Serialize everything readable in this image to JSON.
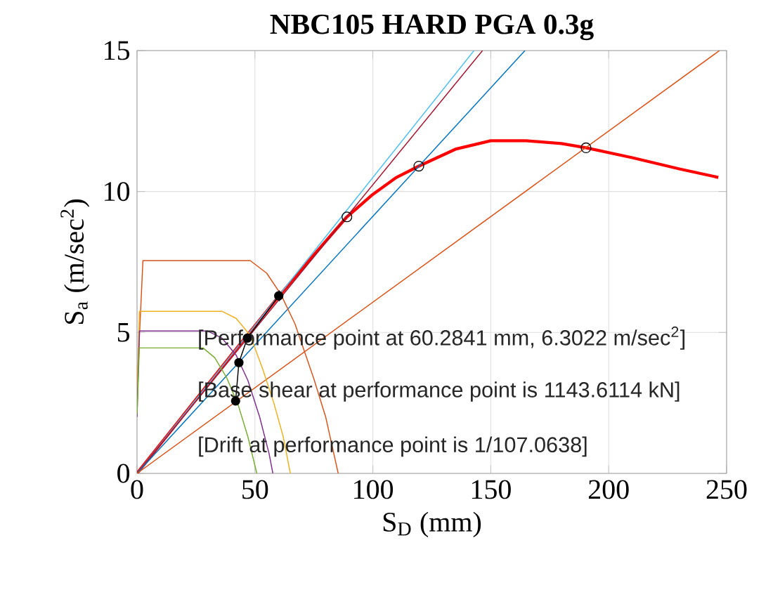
{
  "chart_data": {
    "type": "line",
    "title": "NBC105 HARD PGA 0.3g",
    "xlabel": "S$_{D}$ (mm)",
    "ylabel": "S$_{a}$ (m/sec$^{2}$)",
    "xlim": [
      0,
      250
    ],
    "ylim": [
      0,
      15
    ],
    "xticks": [
      0,
      50,
      100,
      150,
      200,
      250
    ],
    "yticks": [
      0,
      5,
      10,
      15
    ],
    "grid": true,
    "series": [
      {
        "color": "#ff0000",
        "x": [
          0,
          20,
          40,
          60.28,
          75,
          89,
          100,
          110,
          119.5,
          135,
          150,
          165,
          180,
          190.4,
          210,
          230,
          246.5
        ],
        "values": [
          0,
          2.1,
          4.2,
          6.3,
          7.75,
          9.1,
          9.9,
          10.5,
          10.9,
          11.5,
          11.8,
          11.8,
          11.7,
          11.55,
          11.2,
          10.8,
          10.5
        ]
      },
      {
        "color": "#4dbeee",
        "x": [
          0,
          142.9
        ],
        "values": [
          0,
          15
        ]
      },
      {
        "color": "#a2142f",
        "x": [
          0,
          146.5
        ],
        "values": [
          0,
          15
        ]
      },
      {
        "color": "#0072bd",
        "x": [
          0,
          164.5
        ],
        "values": [
          0,
          15
        ]
      },
      {
        "color": "#d95319",
        "x": [
          0,
          247
        ],
        "values": [
          0,
          15
        ]
      },
      {
        "color": "#d95319",
        "x": [
          0,
          2.5,
          48,
          55,
          61,
          67,
          75,
          80,
          85.3
        ],
        "values": [
          3.0,
          7.55,
          7.55,
          7.1,
          6.35,
          5.3,
          3.35,
          2.0,
          0
        ]
      },
      {
        "color": "#edb120",
        "x": [
          0,
          1,
          36,
          42,
          48,
          53.3,
          58,
          62,
          65
        ],
        "values": [
          2.5,
          5.75,
          5.75,
          5.5,
          4.9,
          3.7,
          2.5,
          1.3,
          0
        ]
      },
      {
        "color": "#7e2f8e",
        "x": [
          0,
          1,
          30,
          36,
          42,
          47,
          52,
          56,
          57.6
        ],
        "values": [
          2.0,
          5.05,
          5.05,
          4.8,
          4.2,
          3.3,
          2.0,
          0.7,
          0
        ]
      },
      {
        "color": "#77ac30",
        "x": [
          0,
          1,
          28,
          33,
          38,
          43,
          47,
          50.8
        ],
        "values": [
          2.1,
          4.45,
          4.45,
          4.1,
          3.4,
          2.4,
          1.3,
          0
        ]
      },
      {
        "color": "#000000",
        "marker": "circle",
        "x": [
          41.8,
          43.2,
          46.8,
          60.1
        ],
        "values": [
          2.57,
          3.93,
          4.8,
          6.3
        ]
      },
      {
        "type": "scatter",
        "color": "#000000",
        "marker": "circle",
        "x": [
          89,
          119.5,
          190.4
        ],
        "values": [
          9.1,
          10.9,
          11.55
        ]
      },
      {
        "type": "scatter",
        "color": "#000000",
        "marker": "diamond",
        "x": [
          60.28
        ],
        "values": [
          6.3
        ]
      }
    ],
    "annotations": [
      "[Performance point at 60.2841 mm, 6.3022 m/sec$^{2}$]",
      "[Base shear at performance point is 1143.6114 kN]",
      "[Drift at performance point is 1/107.0638]"
    ]
  }
}
